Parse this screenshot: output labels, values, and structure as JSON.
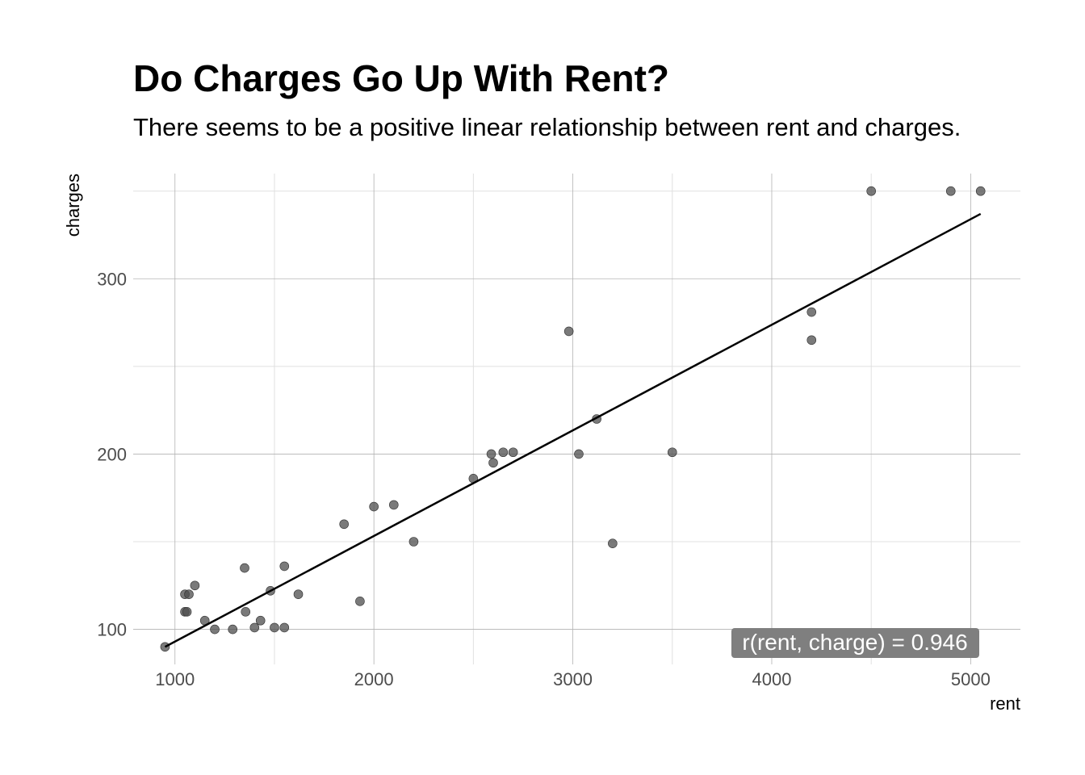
{
  "chart_data": {
    "type": "scatter",
    "title": "Do Charges Go Up With Rent?",
    "subtitle": "There seems to be a positive linear relationship between rent and charges.",
    "xlabel": "rent",
    "ylabel": "charges",
    "xlim": [
      790,
      5250
    ],
    "ylim": [
      80,
      360
    ],
    "x_ticks": [
      1000,
      2000,
      3000,
      4000,
      5000
    ],
    "x_tick_labels": [
      "1000",
      "2000",
      "3000",
      "4000",
      "5000"
    ],
    "y_ticks": [
      100,
      200,
      300
    ],
    "y_tick_labels": [
      "100",
      "200",
      "300"
    ],
    "grid": true,
    "points": [
      {
        "x": 950,
        "y": 90
      },
      {
        "x": 1050,
        "y": 120
      },
      {
        "x": 1050,
        "y": 110
      },
      {
        "x": 1060,
        "y": 110
      },
      {
        "x": 1070,
        "y": 120
      },
      {
        "x": 1100,
        "y": 125
      },
      {
        "x": 1150,
        "y": 105
      },
      {
        "x": 1200,
        "y": 100
      },
      {
        "x": 1290,
        "y": 100
      },
      {
        "x": 1350,
        "y": 135
      },
      {
        "x": 1355,
        "y": 110
      },
      {
        "x": 1400,
        "y": 101
      },
      {
        "x": 1430,
        "y": 105
      },
      {
        "x": 1480,
        "y": 122
      },
      {
        "x": 1500,
        "y": 101
      },
      {
        "x": 1550,
        "y": 136
      },
      {
        "x": 1550,
        "y": 101
      },
      {
        "x": 1620,
        "y": 120
      },
      {
        "x": 1850,
        "y": 160
      },
      {
        "x": 1930,
        "y": 116
      },
      {
        "x": 2000,
        "y": 170
      },
      {
        "x": 2100,
        "y": 171
      },
      {
        "x": 2200,
        "y": 150
      },
      {
        "x": 2500,
        "y": 186
      },
      {
        "x": 2590,
        "y": 200
      },
      {
        "x": 2600,
        "y": 195
      },
      {
        "x": 2650,
        "y": 201
      },
      {
        "x": 2700,
        "y": 201
      },
      {
        "x": 2980,
        "y": 270
      },
      {
        "x": 3030,
        "y": 200
      },
      {
        "x": 3120,
        "y": 220
      },
      {
        "x": 3200,
        "y": 149
      },
      {
        "x": 3500,
        "y": 201
      },
      {
        "x": 4200,
        "y": 281
      },
      {
        "x": 4200,
        "y": 265
      },
      {
        "x": 4500,
        "y": 350
      },
      {
        "x": 4900,
        "y": 350
      },
      {
        "x": 5050,
        "y": 350
      }
    ],
    "fit_line": {
      "x": [
        950,
        5050
      ],
      "y": [
        90,
        337
      ]
    },
    "annotation": "r(rent, charge) = 0.946",
    "colors": {
      "point": "#4d4d4d",
      "fit_line": "#000000",
      "annotation_bg": "#7f7f7f",
      "grid_major": "#b3b3b3",
      "grid_minor": "#e0e0e0"
    }
  }
}
